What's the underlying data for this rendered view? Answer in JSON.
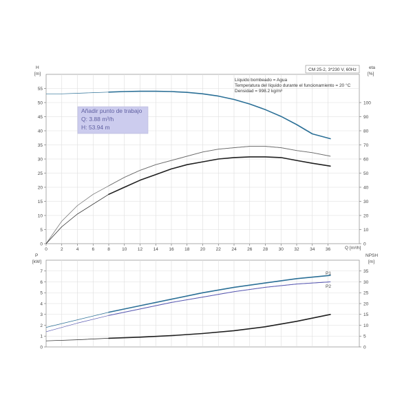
{
  "model_label": "CM 25-2, 3*230 V, 60Hz",
  "medium_info": [
    "Líquido bombeado = Agua",
    "Temperatura del líquido durante el funcionamiento = 20 °C",
    "Densidad = 998.2 kg/m³"
  ],
  "working_point": {
    "title": "Añadir punto de trabajo",
    "q_label": "Q: 3.88 m³/h",
    "h_label": "H: 53.94 m"
  },
  "colors": {
    "head": "#2a6f96",
    "eta_outer": "#6b6b6b",
    "eta_inner": "#1e1e1e",
    "p1": "#2a6f96",
    "p2": "#5a5ab2",
    "npsh": "#1e1e1e",
    "working_point_bg": "#ccccee"
  },
  "chart_data": [
    {
      "type": "line",
      "xlabel": "Q [m³/h]",
      "ylabel": "H [m]",
      "ylabel_right": "eta [%]",
      "x_ticks": [
        "0",
        "2",
        "4",
        "6",
        "8",
        "10",
        "12",
        "14",
        "16",
        "18",
        "20",
        "22",
        "24",
        "26",
        "28",
        "30",
        "32",
        "34",
        "36"
      ],
      "y_ticks": [
        "0",
        "5",
        "10",
        "15",
        "20",
        "25",
        "30",
        "35",
        "40",
        "45",
        "50",
        "55"
      ],
      "y_right_ticks": [
        "0",
        "10",
        "20",
        "30",
        "40",
        "50",
        "60",
        "70",
        "80",
        "90",
        "100"
      ],
      "xlim": [
        0,
        40
      ],
      "ylim": [
        0,
        60
      ],
      "ylim_right": [
        0,
        120
      ],
      "grid": true,
      "series": [
        {
          "key": "head",
          "axis": "left",
          "x": [
            0,
            2,
            4,
            6,
            8,
            10,
            12,
            14,
            16,
            18,
            20,
            22,
            24,
            26,
            28,
            30,
            32,
            34,
            36.3
          ],
          "y": [
            53,
            53.1,
            53.3,
            53.5,
            53.7,
            53.9,
            54,
            54,
            53.9,
            53.6,
            53.1,
            52.3,
            51.1,
            49.5,
            47.5,
            45.1,
            42.2,
            38.9,
            37.2
          ]
        },
        {
          "key": "eta_outer",
          "axis": "right",
          "x": [
            0,
            2,
            4,
            6,
            8,
            10,
            12,
            14,
            16,
            18,
            20,
            22,
            24,
            26,
            28,
            30,
            32,
            34,
            36.3
          ],
          "y": [
            0,
            16,
            27,
            35,
            41,
            47,
            52,
            56,
            59,
            62,
            65,
            67,
            68,
            69,
            69,
            68,
            66,
            64.5,
            62
          ]
        },
        {
          "key": "eta_inner",
          "axis": "right",
          "x": [
            0,
            2,
            4,
            6,
            8,
            10,
            12,
            14,
            16,
            18,
            20,
            22,
            24,
            26,
            28,
            30,
            32,
            34,
            36.3
          ],
          "y": [
            0,
            12,
            21,
            28,
            35,
            40,
            45,
            49,
            53,
            56,
            58,
            60,
            61,
            61.5,
            61.5,
            61,
            59,
            57,
            55
          ]
        }
      ]
    },
    {
      "type": "line",
      "xlabel": "",
      "ylabel": "P [kW]",
      "ylabel_right": "NPSH [m]",
      "y_ticks": [
        "0",
        "1",
        "2",
        "3",
        "4",
        "5",
        "6",
        "7"
      ],
      "y_right_ticks": [
        "0",
        "5",
        "10",
        "15",
        "20",
        "25",
        "30",
        "35"
      ],
      "ylim": [
        0,
        8
      ],
      "ylim_right": [
        0,
        40
      ],
      "grid": true,
      "series": [
        {
          "key": "p1",
          "name": "P1",
          "axis": "left",
          "x": [
            0,
            4,
            8,
            12,
            16,
            20,
            24,
            28,
            32,
            36.3
          ],
          "y": [
            1.8,
            2.5,
            3.2,
            3.8,
            4.4,
            5,
            5.5,
            5.9,
            6.3,
            6.6
          ]
        },
        {
          "key": "p2",
          "name": "P2",
          "axis": "left",
          "x": [
            0,
            4,
            8,
            12,
            16,
            20,
            24,
            28,
            32,
            36.3
          ],
          "y": [
            1.4,
            2.2,
            2.9,
            3.5,
            4.1,
            4.6,
            5.1,
            5.5,
            5.8,
            6
          ]
        },
        {
          "key": "npsh",
          "axis": "right",
          "x": [
            0,
            4,
            8,
            12,
            16,
            20,
            24,
            28,
            32,
            36.3
          ],
          "y": [
            2.8,
            3.3,
            4,
            4.5,
            5.2,
            6.2,
            7.5,
            9.3,
            11.8,
            15
          ]
        }
      ]
    }
  ]
}
